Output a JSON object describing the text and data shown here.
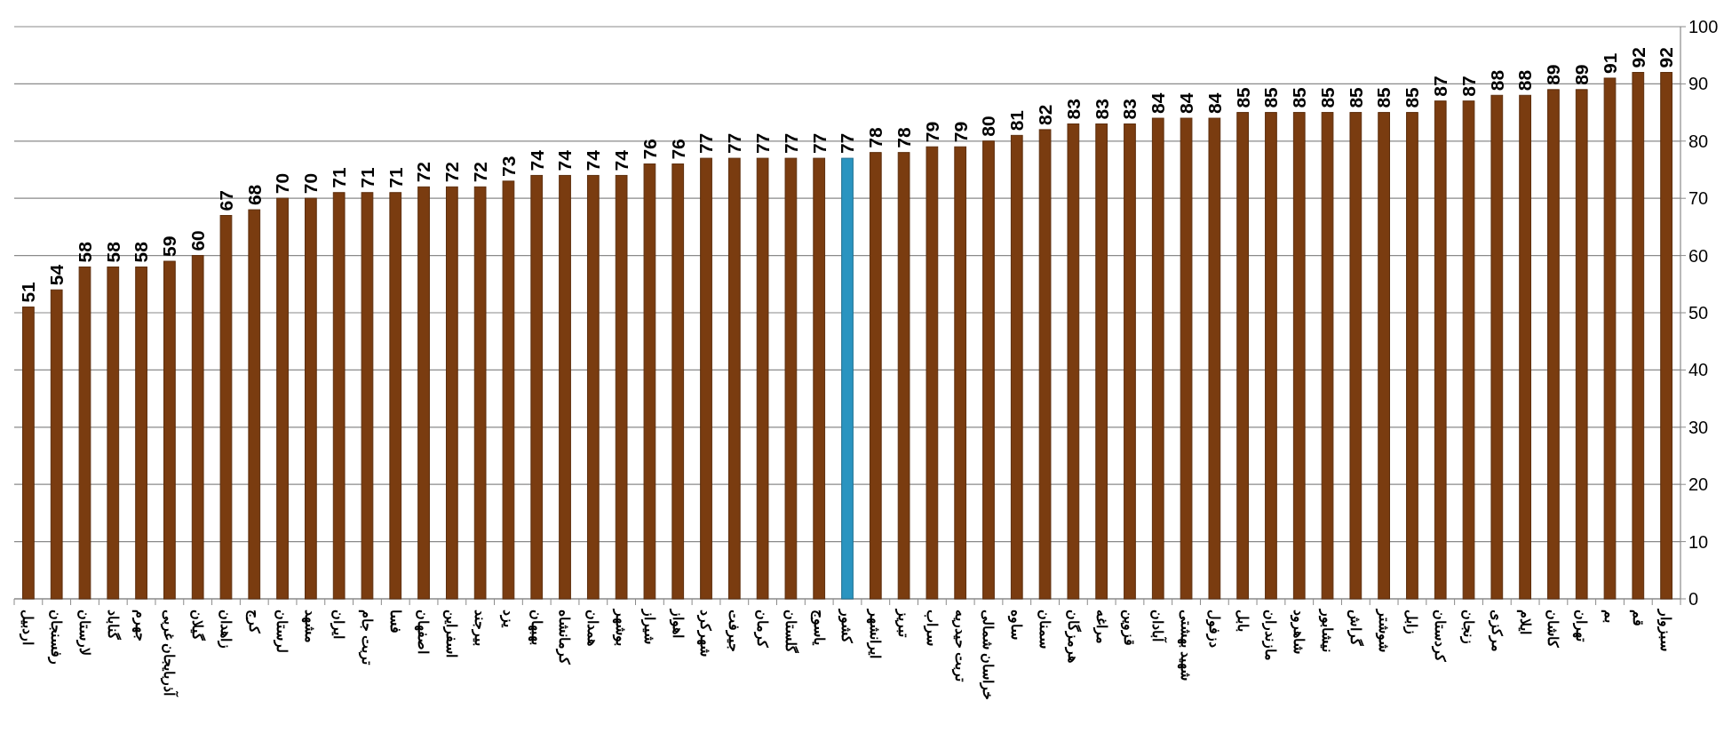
{
  "chart_data": {
    "type": "bar",
    "categories": [
      "اردبیل",
      "رفسنجان",
      "لارستان",
      "گناباد",
      "جهرم",
      "آذربایجان غربی",
      "گیلان",
      "زاهدان",
      "کرج",
      "لرستان",
      "مشهد",
      "ایران",
      "تربت جام",
      "فسا",
      "اصفهان",
      "اسفراین",
      "بیرجند",
      "یزد",
      "بهبهان",
      "کرمانشاه",
      "همدان",
      "بوشهر",
      "شیراز",
      "اهواز",
      "شهرکرد",
      "جیرفت",
      "کرمان",
      "گلستان",
      "یاسوج",
      "کشور",
      "ایرانشهر",
      "تبریز",
      "سراب",
      "تربت حیدریه",
      "خراسان شمالی",
      "ساوه",
      "سمنان",
      "هرمزگان",
      "مراغه",
      "قزوین",
      "آبادان",
      "شهید بهشتی",
      "دزفول",
      "بابل",
      "مازندران",
      "شاهرود",
      "نیشابور",
      "گراش",
      "شوشتر",
      "زابل",
      "کردستان",
      "زنجان",
      "مرکزی",
      "ایلام",
      "کاشان",
      "تهران",
      "بم",
      "قم",
      "سبزوار"
    ],
    "values": [
      51,
      54,
      58,
      58,
      58,
      59,
      60,
      67,
      68,
      70,
      70,
      71,
      71,
      71,
      72,
      72,
      72,
      73,
      74,
      74,
      74,
      74,
      76,
      76,
      77,
      77,
      77,
      77,
      77,
      77,
      78,
      78,
      79,
      79,
      80,
      81,
      82,
      83,
      83,
      83,
      84,
      84,
      84,
      85,
      85,
      85,
      85,
      85,
      85,
      85,
      87,
      87,
      88,
      88,
      89,
      89,
      91,
      92,
      92
    ],
    "colors": [
      "#7a3c10",
      "#7a3c10",
      "#7a3c10",
      "#7a3c10",
      "#7a3c10",
      "#7a3c10",
      "#7a3c10",
      "#7a3c10",
      "#7a3c10",
      "#7a3c10",
      "#7a3c10",
      "#7a3c10",
      "#7a3c10",
      "#7a3c10",
      "#7a3c10",
      "#7a3c10",
      "#7a3c10",
      "#7a3c10",
      "#7a3c10",
      "#7a3c10",
      "#7a3c10",
      "#7a3c10",
      "#7a3c10",
      "#7a3c10",
      "#7a3c10",
      "#7a3c10",
      "#7a3c10",
      "#7a3c10",
      "#7a3c10",
      "#2a94c0",
      "#7a3c10",
      "#7a3c10",
      "#7a3c10",
      "#7a3c10",
      "#7a3c10",
      "#7a3c10",
      "#7a3c10",
      "#7a3c10",
      "#7a3c10",
      "#7a3c10",
      "#7a3c10",
      "#7a3c10",
      "#7a3c10",
      "#7a3c10",
      "#7a3c10",
      "#7a3c10",
      "#7a3c10",
      "#7a3c10",
      "#7a3c10",
      "#7a3c10",
      "#7a3c10",
      "#7a3c10",
      "#7a3c10",
      "#7a3c10",
      "#7a3c10",
      "#7a3c10",
      "#7a3c10",
      "#7a3c10",
      "#7a3c10"
    ],
    "ylim": [
      0,
      100
    ],
    "yticks": [
      0,
      10,
      20,
      30,
      40,
      50,
      60,
      70,
      80,
      90,
      100
    ],
    "grid": "y",
    "data_labels": true
  }
}
